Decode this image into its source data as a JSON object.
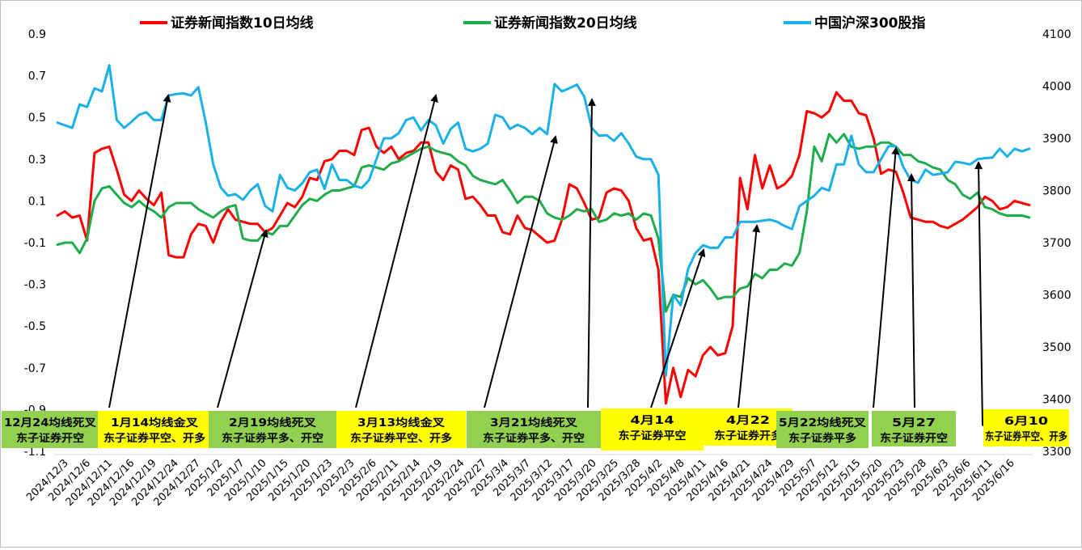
{
  "chart_data": {
    "type": "line",
    "legend_position": "top",
    "grid": false,
    "legend": [
      {
        "name": "证券新闻指数10日均线",
        "color": "#ff0000"
      },
      {
        "name": "证券新闻指数20日均线",
        "color": "#1fad4c"
      },
      {
        "name": "中国沪深300股指",
        "color": "#1ab0e8"
      }
    ],
    "y_left": {
      "min": -1.1,
      "max": 0.9,
      "ticks": [
        "0.9",
        "0.7",
        "0.5",
        "0.3",
        "0.1",
        "-0.1",
        "-0.3",
        "-0.5",
        "-0.7",
        "-0.9",
        "-1.1"
      ]
    },
    "y_right": {
      "min": 3300,
      "max": 4100,
      "ticks": [
        "4100",
        "4000",
        "3900",
        "3800",
        "3700",
        "3600",
        "3500",
        "3400",
        "3300"
      ]
    },
    "x_tick_labels": [
      "2024/12/3",
      "2024/12/6",
      "2024/12/11",
      "2024/12/16",
      "2024/12/19",
      "2024/12/24",
      "2024/12/27",
      "2025/1/2",
      "2025/1/7",
      "2025/1/10",
      "2025/1/15",
      "2025/1/20",
      "2025/1/23",
      "2025/2/3",
      "2025/2/6",
      "2025/2/11",
      "2025/2/14",
      "2025/2/19",
      "2025/2/24",
      "2025/2/27",
      "2025/3/4",
      "2025/3/7",
      "2025/3/12",
      "2025/3/17",
      "2025/3/20",
      "2025/3/25",
      "2025/3/28",
      "2025/4/2",
      "2025/4/8",
      "2025/4/11",
      "2025/4/16",
      "2025/4/21",
      "2025/4/24",
      "2025/4/29",
      "2025/5/7",
      "2025/5/12",
      "2025/5/15",
      "2025/5/20",
      "2025/5/23",
      "2025/5/28",
      "2025/6/3",
      "2025/6/6",
      "2025/6/11",
      "2025/6/16"
    ],
    "n_points": 132,
    "series": [
      {
        "name": "证券新闻指数10日均线",
        "axis": "left",
        "color": "#ff0000",
        "values": [
          0.03,
          0.05,
          0.02,
          0.03,
          -0.09,
          0.33,
          0.35,
          0.36,
          0.25,
          0.13,
          0.1,
          0.15,
          0.11,
          0.08,
          0.14,
          -0.16,
          -0.17,
          -0.17,
          -0.06,
          -0.01,
          -0.02,
          -0.1,
          0.0,
          0.06,
          0.01,
          0.0,
          -0.01,
          -0.01,
          -0.05,
          -0.03,
          0.03,
          0.09,
          0.07,
          0.12,
          0.21,
          0.2,
          0.29,
          0.3,
          0.34,
          0.34,
          0.32,
          0.44,
          0.45,
          0.36,
          0.33,
          0.36,
          0.3,
          0.33,
          0.34,
          0.38,
          0.38,
          0.24,
          0.2,
          0.27,
          0.25,
          0.11,
          0.12,
          0.08,
          0.03,
          0.03,
          -0.05,
          -0.06,
          0.03,
          -0.03,
          -0.04,
          -0.07,
          -0.1,
          -0.09,
          0.01,
          0.18,
          0.16,
          0.09,
          0.01,
          0.02,
          0.14,
          0.16,
          0.15,
          0.1,
          -0.03,
          -0.09,
          -0.08,
          -0.23,
          -0.87,
          -0.7,
          -0.84,
          -0.71,
          -0.74,
          -0.64,
          -0.6,
          -0.64,
          -0.63,
          -0.5,
          0.21,
          0.06,
          0.32,
          0.16,
          0.27,
          0.16,
          0.18,
          0.22,
          0.32,
          0.53,
          0.52,
          0.5,
          0.53,
          0.62,
          0.58,
          0.58,
          0.52,
          0.51,
          0.4,
          0.23,
          0.25,
          0.24,
          0.14,
          0.02,
          0.01,
          0.0,
          0.0,
          -0.02,
          -0.03,
          -0.01,
          0.01,
          0.04,
          0.07,
          0.12,
          0.1,
          0.06,
          0.07,
          0.1,
          0.09,
          0.08
        ]
      },
      {
        "name": "证券新闻指数20日均线",
        "axis": "left",
        "color": "#1fad4c",
        "values": [
          -0.11,
          -0.1,
          -0.1,
          -0.15,
          -0.08,
          0.1,
          0.16,
          0.17,
          0.13,
          0.09,
          0.07,
          0.1,
          0.07,
          0.05,
          0.02,
          0.07,
          0.09,
          0.09,
          0.09,
          0.06,
          0.04,
          0.02,
          0.05,
          0.07,
          0.08,
          -0.08,
          -0.09,
          -0.09,
          -0.05,
          -0.06,
          -0.02,
          -0.02,
          0.03,
          0.08,
          0.11,
          0.1,
          0.13,
          0.15,
          0.15,
          0.16,
          0.17,
          0.26,
          0.27,
          0.26,
          0.25,
          0.28,
          0.29,
          0.31,
          0.33,
          0.35,
          0.36,
          0.34,
          0.33,
          0.32,
          0.29,
          0.27,
          0.22,
          0.2,
          0.19,
          0.18,
          0.2,
          0.15,
          0.09,
          0.12,
          0.12,
          0.1,
          0.04,
          0.02,
          0.01,
          0.03,
          0.06,
          0.05,
          0.06,
          0.0,
          0.01,
          0.04,
          0.03,
          0.04,
          0.01,
          0.04,
          0.03,
          -0.08,
          -0.43,
          -0.35,
          -0.36,
          -0.27,
          -0.3,
          -0.28,
          -0.32,
          -0.37,
          -0.36,
          -0.36,
          -0.32,
          -0.31,
          -0.25,
          -0.27,
          -0.23,
          -0.23,
          -0.2,
          -0.21,
          -0.15,
          0.05,
          0.36,
          0.29,
          0.42,
          0.38,
          0.42,
          0.36,
          0.35,
          0.36,
          0.36,
          0.38,
          0.38,
          0.36,
          0.32,
          0.32,
          0.29,
          0.28,
          0.26,
          0.25,
          0.2,
          0.18,
          0.13,
          0.11,
          0.14,
          0.07,
          0.06,
          0.04,
          0.03,
          0.03,
          0.03,
          0.02
        ]
      },
      {
        "name": "中国沪深300股指",
        "axis": "right",
        "color": "#1ab0e8",
        "values": [
          3930,
          3925,
          3920,
          3965,
          3960,
          3996,
          3990,
          4040,
          3935,
          3920,
          3932,
          3945,
          3950,
          3935,
          3935,
          3982,
          3985,
          3986,
          3982,
          3998,
          3930,
          3850,
          3806,
          3790,
          3793,
          3782,
          3800,
          3812,
          3770,
          3760,
          3830,
          3805,
          3800,
          3814,
          3835,
          3840,
          3803,
          3850,
          3820,
          3820,
          3809,
          3805,
          3820,
          3860,
          3900,
          3900,
          3910,
          3935,
          3940,
          3915,
          3935,
          3925,
          3890,
          3918,
          3930,
          3880,
          3875,
          3880,
          3890,
          3945,
          3940,
          3918,
          3926,
          3920,
          3908,
          3920,
          3908,
          4004,
          3990,
          3996,
          4003,
          3980,
          3920,
          3905,
          3906,
          3895,
          3910,
          3890,
          3865,
          3860,
          3860,
          3830,
          3445,
          3600,
          3580,
          3650,
          3680,
          3695,
          3690,
          3690,
          3710,
          3710,
          3740,
          3740,
          3740,
          3742,
          3744,
          3740,
          3732,
          3726,
          3770,
          3780,
          3790,
          3805,
          3800,
          3850,
          3850,
          3905,
          3850,
          3835,
          3835,
          3860,
          3885,
          3885,
          3845,
          3820,
          3815,
          3840,
          3830,
          3832,
          3835,
          3855,
          3853,
          3850,
          3860,
          3862,
          3863,
          3880,
          3865,
          3880,
          3875,
          3880
        ]
      }
    ],
    "annotations": [
      {
        "line1": "12月24均线死叉",
        "line2": "东子证券开空",
        "bg": "#92d050",
        "points_to": "2024/12/24"
      },
      {
        "line1": "1月14均线金叉",
        "line2": "东子证券平空、开多",
        "bg": "#ffff00",
        "points_to": "2025/1/14"
      },
      {
        "line1": "2月19均线死叉",
        "line2": "东子证券平多、开空",
        "bg": "#92d050",
        "points_to": "2025/2/19"
      },
      {
        "line1": "3月13均线金叉",
        "line2": "东子证券平空、开多",
        "bg": "#ffff00",
        "points_to": "2025/3/13"
      },
      {
        "line1": "3月21均线死叉",
        "line2": "东子证券平多、开空",
        "bg": "#92d050",
        "points_to": "2025/3/21"
      },
      {
        "line1": "4月14",
        "line2": "东子证券平空",
        "bg": "#ffff00",
        "points_to": "2025/4/14"
      },
      {
        "line1": "4月22",
        "line2": "东子证券开多",
        "bg": "#ffff00",
        "points_to": "2025/4/22"
      },
      {
        "line1": "5月22均线死叉",
        "line2": "东子证券平多",
        "bg": "#92d050",
        "points_to": "2025/5/22"
      },
      {
        "line1": "5月27",
        "line2": "东子证券开空",
        "bg": "#92d050",
        "points_to": "2025/5/27"
      },
      {
        "line1": "6月10",
        "line2": "东子证券平空、开多",
        "bg": "#ffff00",
        "points_to": "2025/6/10"
      }
    ]
  }
}
